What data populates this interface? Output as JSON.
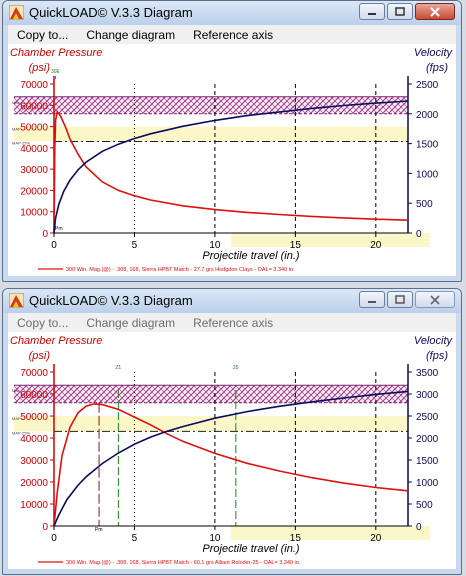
{
  "windows": [
    {
      "title": "QuickLOAD© V.3.3 Diagram",
      "active": true,
      "menu": [
        "Copy to...",
        "Change diagram",
        "Reference axis"
      ],
      "chart": {
        "left_title": "Chamber Pressure",
        "left_unit": "(psi)",
        "right_title": "Velocity",
        "right_unit": "(fps)",
        "xlabel": "Projectile travel (in.)",
        "legend": "300 Win. Mag.(@) - .308, 168, Sierra HPBT Match - 27.7 grs Hodgdon Clays - OAL= 3.340 in.",
        "band_labels": [
          "Max",
          "MAP",
          "MAP-25%"
        ],
        "markers": [
          "30E",
          "Pm"
        ],
        "colors": {
          "pressure": "#dd1111",
          "velocity": "#0a0a5e",
          "axis_left": "#cc0000",
          "axis_right": "#0a0a5e"
        }
      }
    },
    {
      "title": "QuickLOAD© V.3.3 Diagram",
      "active": false,
      "menu": [
        "Copy to...",
        "Change diagram",
        "Reference axis"
      ],
      "chart": {
        "left_title": "Chamber Pressure",
        "left_unit": "(psi)",
        "right_title": "Velocity",
        "right_unit": "(fps)",
        "xlabel": "Projectile travel (in.)",
        "legend": "300 Win. Mag.(@) - .308, 168, Sierra HPBT Match - 60.1 grs Alliant Reloder-25 - OAL= 3.340 in.",
        "band_labels": [
          "Max",
          "MAP",
          "MAP-25%"
        ],
        "markers": [
          "Z1",
          "25",
          "Pm"
        ],
        "colors": {
          "pressure": "#dd1111",
          "velocity": "#0a0a5e",
          "axis_left": "#cc0000",
          "axis_right": "#0a0a5e"
        }
      }
    }
  ],
  "chart_data": [
    {
      "type": "line",
      "x_ticks": [
        0,
        5,
        10,
        15,
        20
      ],
      "xlim": [
        0,
        22
      ],
      "y_left_ticks": [
        0,
        10000,
        20000,
        30000,
        40000,
        50000,
        60000,
        70000
      ],
      "y_left_lim": [
        0,
        70000
      ],
      "y_right_ticks": [
        0,
        500,
        1000,
        1500,
        2000,
        2500
      ],
      "y_right_lim": [
        0,
        2500
      ],
      "max_band": [
        56000,
        64000
      ],
      "map_25_band": [
        43000,
        50000
      ],
      "series": [
        {
          "axis": "left",
          "points": [
            [
              0,
              0
            ],
            [
              0.05,
              40000
            ],
            [
              0.1,
              53000
            ],
            [
              0.2,
              57000
            ],
            [
              0.4,
              55000
            ],
            [
              0.7,
              50000
            ],
            [
              1,
              44000
            ],
            [
              1.5,
              37000
            ],
            [
              2,
              31000
            ],
            [
              3,
              24000
            ],
            [
              4,
              20000
            ],
            [
              5,
              17500
            ],
            [
              6,
              15500
            ],
            [
              8,
              12800
            ],
            [
              10,
              11000
            ],
            [
              12,
              9700
            ],
            [
              14,
              8700
            ],
            [
              16,
              7800
            ],
            [
              18,
              7100
            ],
            [
              20,
              6500
            ],
            [
              22,
              6000
            ]
          ]
        },
        {
          "axis": "right",
          "points": [
            [
              0,
              0
            ],
            [
              0.1,
              250
            ],
            [
              0.3,
              480
            ],
            [
              0.6,
              700
            ],
            [
              1,
              890
            ],
            [
              1.5,
              1060
            ],
            [
              2,
              1190
            ],
            [
              3,
              1370
            ],
            [
              4,
              1490
            ],
            [
              5,
              1585
            ],
            [
              6,
              1665
            ],
            [
              8,
              1790
            ],
            [
              10,
              1890
            ],
            [
              12,
              1970
            ],
            [
              14,
              2030
            ],
            [
              16,
              2090
            ],
            [
              18,
              2140
            ],
            [
              20,
              2180
            ],
            [
              22,
              2215
            ]
          ]
        }
      ],
      "dashed_x": [
        0,
        10,
        15,
        20
      ],
      "dotted_x": [
        5
      ],
      "yellow_zone_x": [
        11,
        22
      ]
    },
    {
      "type": "line",
      "x_ticks": [
        0,
        5,
        10,
        15,
        20
      ],
      "xlim": [
        0,
        22
      ],
      "y_left_ticks": [
        0,
        10000,
        20000,
        30000,
        40000,
        50000,
        60000,
        70000
      ],
      "y_left_lim": [
        0,
        70000
      ],
      "y_right_ticks": [
        0,
        500,
        1000,
        1500,
        2000,
        2500,
        3000,
        3500
      ],
      "y_right_lim": [
        0,
        3500
      ],
      "max_band": [
        56000,
        64000
      ],
      "map_25_band": [
        43000,
        50000
      ],
      "series": [
        {
          "axis": "left",
          "points": [
            [
              0,
              0
            ],
            [
              0.2,
              15000
            ],
            [
              0.5,
              32000
            ],
            [
              1,
              45000
            ],
            [
              1.5,
              51500
            ],
            [
              2,
              54500
            ],
            [
              2.5,
              55500
            ],
            [
              3,
              55200
            ],
            [
              4,
              53000
            ],
            [
              5,
              49500
            ],
            [
              6,
              46000
            ],
            [
              7,
              42000
            ],
            [
              8,
              38500
            ],
            [
              10,
              33000
            ],
            [
              12,
              28500
            ],
            [
              14,
              25000
            ],
            [
              16,
              22000
            ],
            [
              18,
              19500
            ],
            [
              20,
              17500
            ],
            [
              22,
              16000
            ]
          ]
        },
        {
          "axis": "right",
          "points": [
            [
              0,
              0
            ],
            [
              0.3,
              250
            ],
            [
              0.8,
              600
            ],
            [
              1.5,
              930
            ],
            [
              2,
              1120
            ],
            [
              3,
              1420
            ],
            [
              4,
              1660
            ],
            [
              5,
              1860
            ],
            [
              6,
              2020
            ],
            [
              7,
              2150
            ],
            [
              8,
              2260
            ],
            [
              10,
              2450
            ],
            [
              12,
              2600
            ],
            [
              14,
              2720
            ],
            [
              16,
              2820
            ],
            [
              18,
              2910
            ],
            [
              20,
              2990
            ],
            [
              22,
              3060
            ]
          ]
        }
      ],
      "dashed_x": [
        0,
        10,
        15,
        20
      ],
      "dotted_x": [
        5
      ],
      "green_dash_x": [
        4,
        11.3
      ],
      "red_dash_x": [
        2.8
      ],
      "yellow_zone_x": [
        11,
        22
      ]
    }
  ]
}
